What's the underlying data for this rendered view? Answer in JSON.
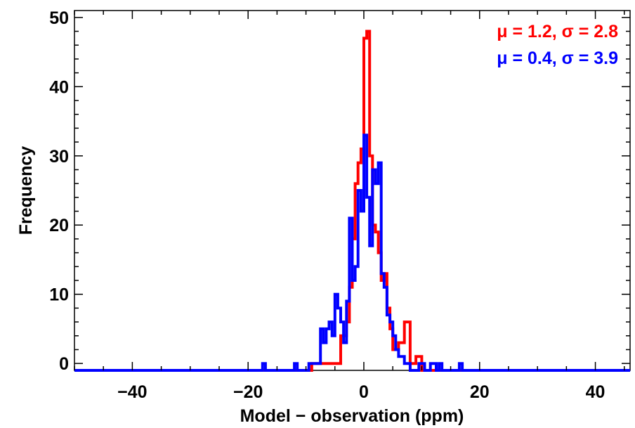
{
  "chart_data": {
    "type": "histogram",
    "xlabel": "Model − observation (ppm)",
    "ylabel": "Frequency",
    "xlim": [
      -50,
      46
    ],
    "ylim": [
      -1,
      51
    ],
    "x_ticks": [
      -40,
      -20,
      0,
      20,
      40
    ],
    "x_tick_labels": [
      "−40",
      "−20",
      "0",
      "20",
      "40"
    ],
    "y_ticks": [
      0,
      10,
      20,
      30,
      40,
      50
    ],
    "y_tick_labels": [
      "0",
      "10",
      "20",
      "30",
      "40",
      "50"
    ],
    "grid": false,
    "baseline": -1,
    "series": [
      {
        "color": "#ff0000",
        "stats_label": "μ =  1.2, σ =  2.8",
        "points": [
          [
            -50,
            -1
          ],
          [
            -9,
            -1
          ],
          [
            -9,
            0
          ],
          [
            -4,
            0
          ],
          [
            -4,
            4
          ],
          [
            -3,
            4
          ],
          [
            -3,
            6
          ],
          [
            -2.5,
            6
          ],
          [
            -2.5,
            11
          ],
          [
            -2,
            11
          ],
          [
            -2,
            18
          ],
          [
            -1.5,
            18
          ],
          [
            -1.5,
            26
          ],
          [
            -1,
            26
          ],
          [
            -1,
            29
          ],
          [
            -0.5,
            29
          ],
          [
            -0.5,
            31
          ],
          [
            0,
            31
          ],
          [
            0,
            47
          ],
          [
            0.5,
            47
          ],
          [
            0.5,
            48
          ],
          [
            1,
            48
          ],
          [
            1,
            30
          ],
          [
            1.5,
            30
          ],
          [
            1.5,
            20
          ],
          [
            2,
            20
          ],
          [
            2,
            19
          ],
          [
            2.5,
            19
          ],
          [
            2.5,
            16
          ],
          [
            3,
            16
          ],
          [
            3,
            12
          ],
          [
            3.5,
            12
          ],
          [
            3.5,
            13
          ],
          [
            4,
            13
          ],
          [
            4,
            8
          ],
          [
            4.5,
            8
          ],
          [
            4.5,
            5
          ],
          [
            5,
            5
          ],
          [
            5,
            2
          ],
          [
            6,
            2
          ],
          [
            6,
            3
          ],
          [
            7,
            3
          ],
          [
            7,
            6
          ],
          [
            8,
            6
          ],
          [
            8,
            0
          ],
          [
            9,
            0
          ],
          [
            9,
            1
          ],
          [
            10,
            1
          ],
          [
            10,
            -1
          ],
          [
            46,
            -1
          ]
        ]
      },
      {
        "color": "#0000ff",
        "stats_label": "μ =  0.4, σ =  3.9",
        "points": [
          [
            -50,
            -1
          ],
          [
            -17.5,
            -1
          ],
          [
            -17.5,
            0
          ],
          [
            -17,
            0
          ],
          [
            -17,
            -1
          ],
          [
            -12,
            -1
          ],
          [
            -12,
            0
          ],
          [
            -11.5,
            0
          ],
          [
            -11.5,
            -1
          ],
          [
            -9.5,
            -1
          ],
          [
            -9.5,
            0
          ],
          [
            -7.5,
            0
          ],
          [
            -7.5,
            5
          ],
          [
            -7,
            5
          ],
          [
            -7,
            3
          ],
          [
            -6.5,
            3
          ],
          [
            -6.5,
            5
          ],
          [
            -6,
            5
          ],
          [
            -6,
            6
          ],
          [
            -5.5,
            6
          ],
          [
            -5.5,
            4
          ],
          [
            -5,
            4
          ],
          [
            -5,
            10
          ],
          [
            -4.5,
            10
          ],
          [
            -4.5,
            8
          ],
          [
            -4,
            8
          ],
          [
            -4,
            6
          ],
          [
            -3.5,
            6
          ],
          [
            -3.5,
            3
          ],
          [
            -3,
            3
          ],
          [
            -3,
            9
          ],
          [
            -2.5,
            9
          ],
          [
            -2.5,
            21
          ],
          [
            -2,
            21
          ],
          [
            -2,
            12
          ],
          [
            -1.5,
            12
          ],
          [
            -1.5,
            14
          ],
          [
            -1,
            14
          ],
          [
            -1,
            25
          ],
          [
            -0.5,
            25
          ],
          [
            -0.5,
            22
          ],
          [
            0,
            22
          ],
          [
            0,
            33
          ],
          [
            0.5,
            33
          ],
          [
            0.5,
            24
          ],
          [
            1,
            24
          ],
          [
            1,
            17
          ],
          [
            1.5,
            17
          ],
          [
            1.5,
            28
          ],
          [
            2,
            28
          ],
          [
            2,
            26
          ],
          [
            2.5,
            26
          ],
          [
            2.5,
            29
          ],
          [
            3,
            29
          ],
          [
            3,
            13
          ],
          [
            3.5,
            13
          ],
          [
            3.5,
            11
          ],
          [
            4,
            11
          ],
          [
            4,
            7
          ],
          [
            4.5,
            7
          ],
          [
            4.5,
            6
          ],
          [
            5,
            6
          ],
          [
            5,
            4
          ],
          [
            5.5,
            4
          ],
          [
            5.5,
            2
          ],
          [
            6,
            2
          ],
          [
            6,
            1
          ],
          [
            7,
            1
          ],
          [
            7,
            0
          ],
          [
            8,
            0
          ],
          [
            8,
            -1
          ],
          [
            9.5,
            -1
          ],
          [
            9.5,
            0
          ],
          [
            10.5,
            0
          ],
          [
            10.5,
            -1
          ],
          [
            11.5,
            -1
          ],
          [
            11.5,
            0
          ],
          [
            12.5,
            0
          ],
          [
            12.5,
            -1
          ],
          [
            13,
            -1
          ],
          [
            13,
            0
          ],
          [
            13.5,
            0
          ],
          [
            13.5,
            -1
          ],
          [
            16.5,
            -1
          ],
          [
            16.5,
            0
          ],
          [
            17,
            0
          ],
          [
            17,
            -1
          ],
          [
            46,
            -1
          ]
        ]
      }
    ]
  }
}
